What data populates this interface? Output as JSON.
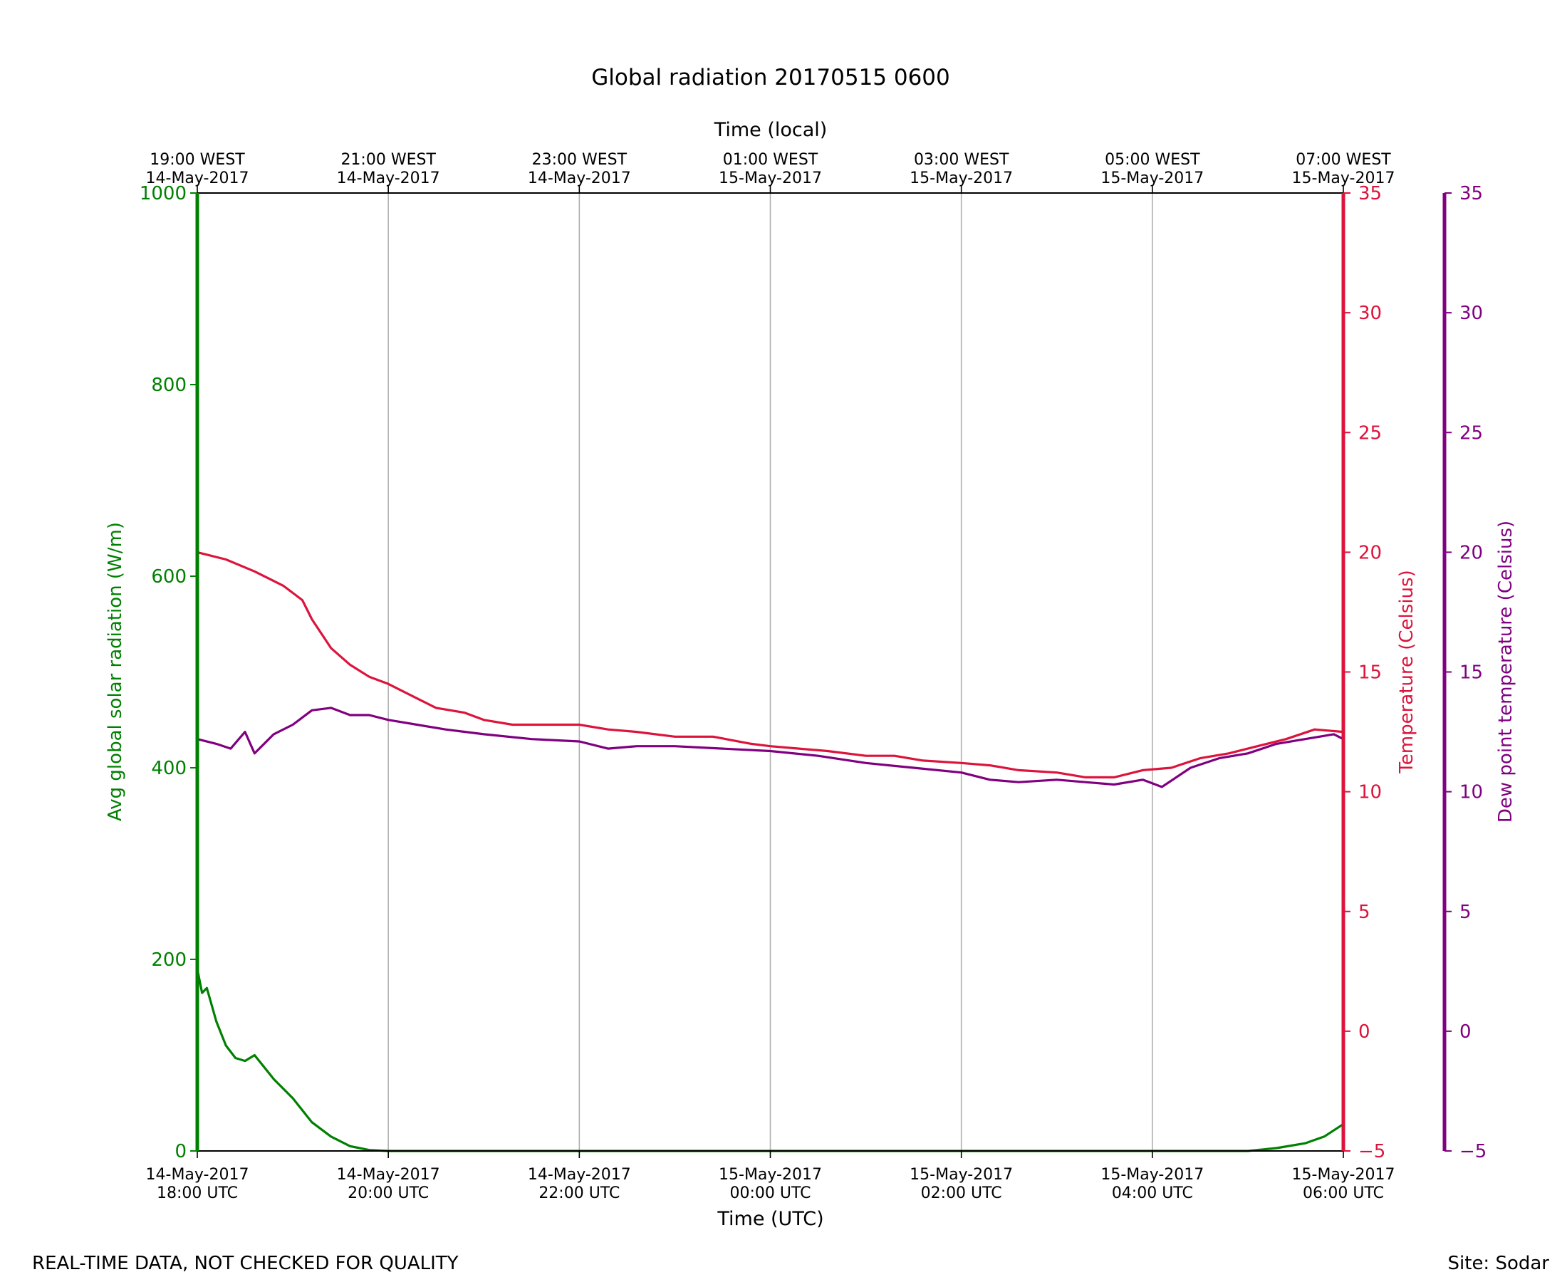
{
  "chart_data": {
    "type": "line",
    "title": "Global radiation 20170515 0600",
    "xlabel": "Time (UTC)",
    "x2label": "Time (local)",
    "ylabel": "Avg global solar radiation (W/m)",
    "y2label": "Temperature (Celsius)",
    "y3label": "Dew point temperature (Celsius)",
    "xlim": [
      0,
      12
    ],
    "ylim": [
      0,
      1000
    ],
    "y2lim": [
      -5,
      35
    ],
    "y3lim": [
      -5,
      35
    ],
    "grid": "vertical",
    "x_ticks": [
      {
        "x": 0,
        "line1": "14-May-2017",
        "line2": "18:00 UTC"
      },
      {
        "x": 2,
        "line1": "14-May-2017",
        "line2": "20:00 UTC"
      },
      {
        "x": 4,
        "line1": "14-May-2017",
        "line2": "22:00 UTC"
      },
      {
        "x": 6,
        "line1": "15-May-2017",
        "line2": "00:00 UTC"
      },
      {
        "x": 8,
        "line1": "15-May-2017",
        "line2": "02:00 UTC"
      },
      {
        "x": 10,
        "line1": "15-May-2017",
        "line2": "04:00 UTC"
      },
      {
        "x": 12,
        "line1": "15-May-2017",
        "line2": "06:00 UTC"
      }
    ],
    "x2_ticks": [
      {
        "x": 0,
        "line1": "19:00 WEST",
        "line2": "14-May-2017"
      },
      {
        "x": 2,
        "line1": "21:00 WEST",
        "line2": "14-May-2017"
      },
      {
        "x": 4,
        "line1": "23:00 WEST",
        "line2": "14-May-2017"
      },
      {
        "x": 6,
        "line1": "01:00 WEST",
        "line2": "15-May-2017"
      },
      {
        "x": 8,
        "line1": "03:00 WEST",
        "line2": "15-May-2017"
      },
      {
        "x": 10,
        "line1": "05:00 WEST",
        "line2": "15-May-2017"
      },
      {
        "x": 12,
        "line1": "07:00 WEST",
        "line2": "15-May-2017"
      }
    ],
    "y_ticks": [
      0,
      200,
      400,
      600,
      800,
      1000
    ],
    "y2_ticks": [
      -5,
      0,
      5,
      10,
      15,
      20,
      25,
      30,
      35
    ],
    "y3_ticks": [
      -5,
      0,
      5,
      10,
      15,
      20,
      25,
      30,
      35
    ],
    "series": [
      {
        "key": "radiation",
        "axis": "y",
        "color": "#008000",
        "x": [
          0,
          0.05,
          0.1,
          0.2,
          0.3,
          0.4,
          0.5,
          0.6,
          0.8,
          1.0,
          1.2,
          1.4,
          1.6,
          1.8,
          2.0,
          2.5,
          3.0,
          4.0,
          5.0,
          6.0,
          7.0,
          8.0,
          9.0,
          10.0,
          10.5,
          11.0,
          11.3,
          11.6,
          11.8,
          12.0
        ],
        "values": [
          190,
          165,
          170,
          135,
          110,
          97,
          94,
          100,
          75,
          55,
          30,
          15,
          5,
          1,
          0,
          0,
          0,
          0,
          0,
          0,
          0,
          0,
          0,
          0,
          0,
          0,
          3,
          8,
          15,
          28
        ]
      },
      {
        "key": "temperature",
        "axis": "y2",
        "color": "#dc143c",
        "x": [
          0,
          0.3,
          0.6,
          0.9,
          1.1,
          1.2,
          1.4,
          1.6,
          1.8,
          2.0,
          2.2,
          2.5,
          2.8,
          3.0,
          3.3,
          3.6,
          4.0,
          4.3,
          4.6,
          5.0,
          5.4,
          5.8,
          6.0,
          6.3,
          6.6,
          7.0,
          7.3,
          7.6,
          8.0,
          8.3,
          8.6,
          9.0,
          9.3,
          9.6,
          9.9,
          10.2,
          10.5,
          10.8,
          11.1,
          11.4,
          11.7,
          12.0
        ],
        "values": [
          20.0,
          19.7,
          19.2,
          18.6,
          18.0,
          17.2,
          16.0,
          15.3,
          14.8,
          14.5,
          14.1,
          13.5,
          13.3,
          13.0,
          12.8,
          12.8,
          12.8,
          12.6,
          12.5,
          12.3,
          12.3,
          12.0,
          11.9,
          11.8,
          11.7,
          11.5,
          11.5,
          11.3,
          11.2,
          11.1,
          10.9,
          10.8,
          10.6,
          10.6,
          10.9,
          11.0,
          11.4,
          11.6,
          11.9,
          12.2,
          12.6,
          12.5
        ]
      },
      {
        "key": "dewpoint",
        "axis": "y3",
        "color": "#800080",
        "x": [
          0,
          0.2,
          0.35,
          0.5,
          0.6,
          0.8,
          1.0,
          1.2,
          1.4,
          1.6,
          1.8,
          2.0,
          2.3,
          2.6,
          3.0,
          3.5,
          4.0,
          4.3,
          4.6,
          5.0,
          5.5,
          6.0,
          6.5,
          7.0,
          7.5,
          8.0,
          8.3,
          8.6,
          9.0,
          9.3,
          9.6,
          9.9,
          10.1,
          10.4,
          10.7,
          11.0,
          11.3,
          11.6,
          11.9,
          12.0
        ],
        "values": [
          12.2,
          12.0,
          11.8,
          12.5,
          11.6,
          12.4,
          12.8,
          13.4,
          13.5,
          13.2,
          13.2,
          13.0,
          12.8,
          12.6,
          12.4,
          12.2,
          12.1,
          11.8,
          11.9,
          11.9,
          11.8,
          11.7,
          11.5,
          11.2,
          11.0,
          10.8,
          10.5,
          10.4,
          10.5,
          10.4,
          10.3,
          10.5,
          10.2,
          11.0,
          11.4,
          11.6,
          12.0,
          12.2,
          12.4,
          12.2
        ]
      }
    ]
  },
  "footer": {
    "left_note": "REAL-TIME DATA, NOT CHECKED FOR QUALITY",
    "right_note": "Site: Sodar"
  }
}
